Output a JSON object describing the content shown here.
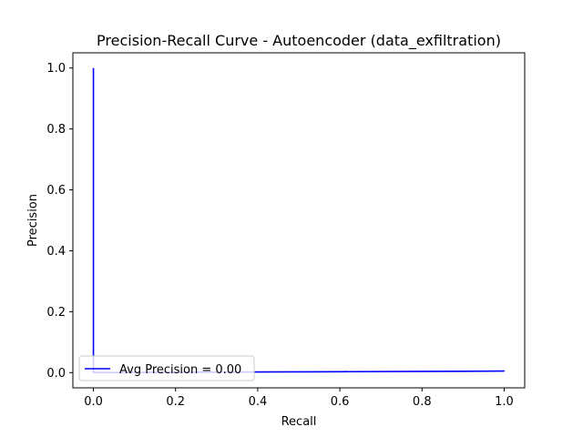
{
  "chart_data": {
    "type": "line",
    "title": "Precision-Recall Curve - Autoencoder (data_exfiltration)",
    "xlabel": "Recall",
    "ylabel": "Precision",
    "xlim": [
      -0.05,
      1.05
    ],
    "ylim": [
      -0.05,
      1.05
    ],
    "xticks": [
      0.0,
      0.2,
      0.4,
      0.6,
      0.8,
      1.0
    ],
    "yticks": [
      0.0,
      0.2,
      0.4,
      0.6,
      0.8,
      1.0
    ],
    "xtick_labels": [
      "0.0",
      "0.2",
      "0.4",
      "0.6",
      "0.8",
      "1.0"
    ],
    "ytick_labels": [
      "0.0",
      "0.2",
      "0.4",
      "0.6",
      "0.8",
      "1.0"
    ],
    "grid": false,
    "legend_position": "lower-left",
    "series": [
      {
        "name": "Avg Precision = 0.00",
        "color": "#0000ff",
        "x": [
          0.0,
          0.0,
          0.0,
          0.0,
          0.2,
          0.4,
          0.6,
          0.8,
          1.0,
          1.0
        ],
        "y": [
          1.0,
          0.0,
          0.05,
          0.0,
          0.001,
          0.002,
          0.003,
          0.004,
          0.005,
          0.004
        ]
      }
    ]
  }
}
